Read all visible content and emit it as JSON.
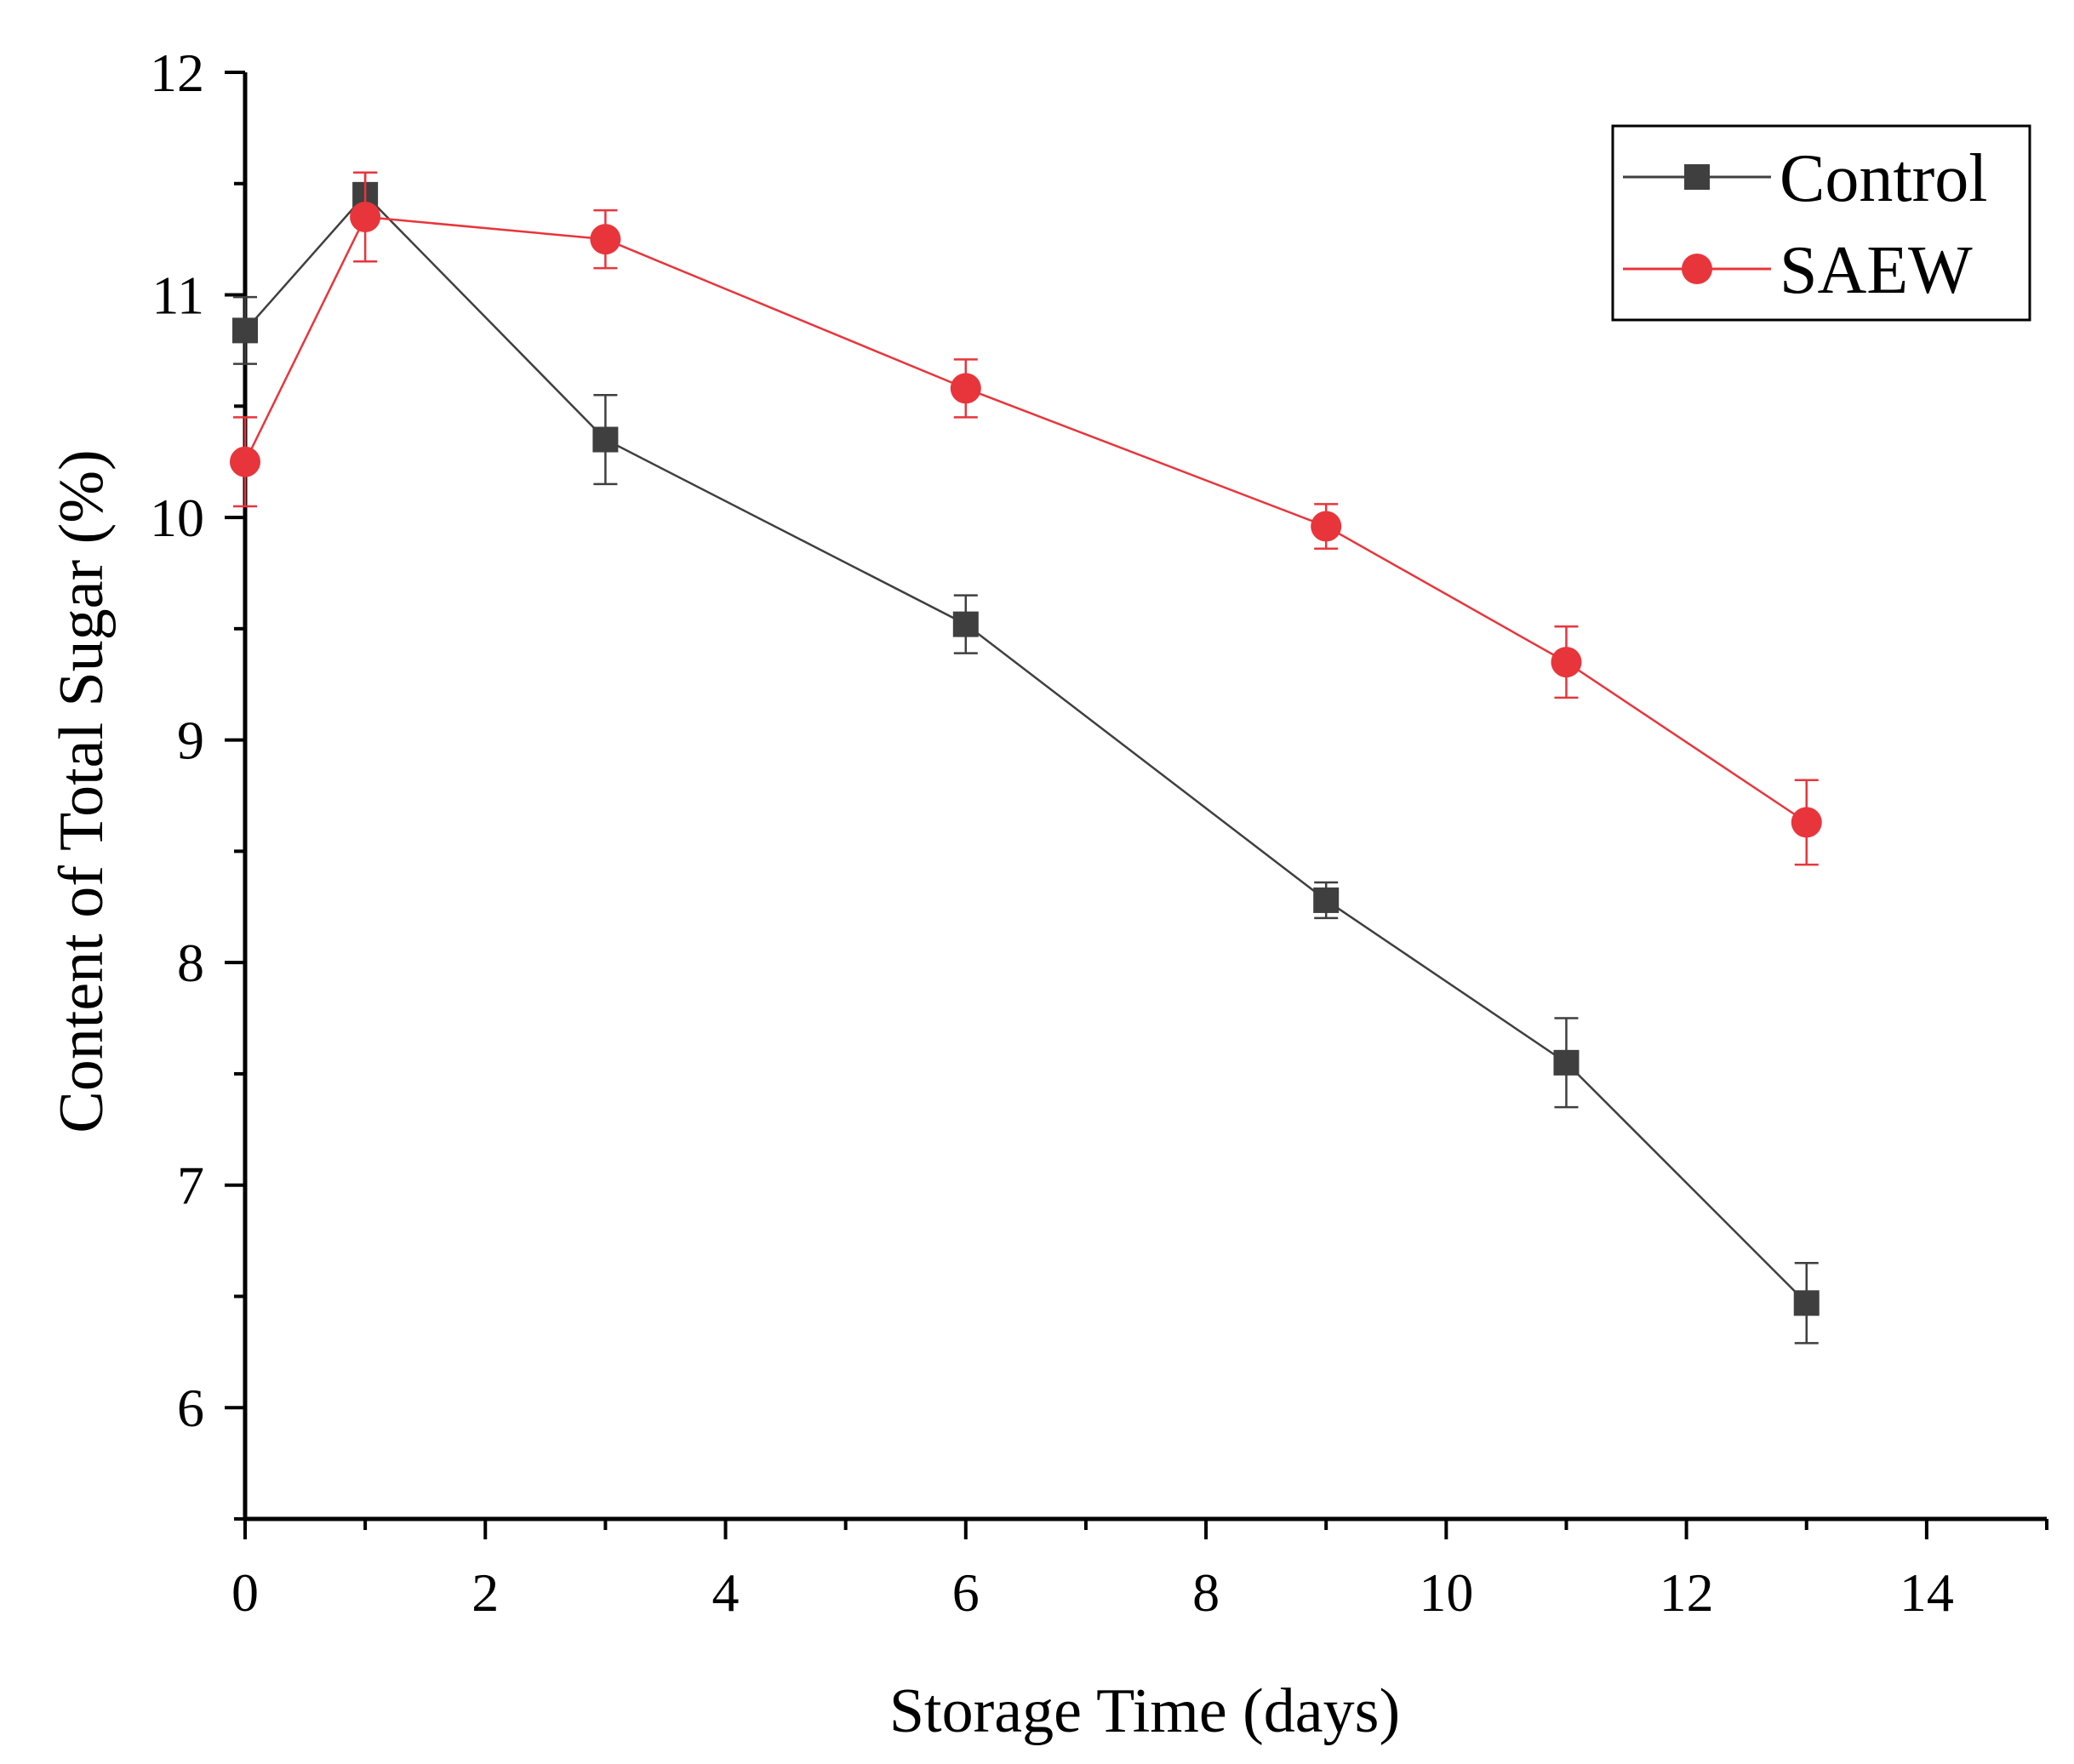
{
  "chart_data": {
    "type": "line",
    "title": "",
    "xlabel": "Storage Time (days)",
    "ylabel": "Content of Total Sugar (%)",
    "xlim": [
      0,
      15
    ],
    "ylim": [
      5.5,
      12
    ],
    "x_ticks": [
      0,
      2,
      4,
      6,
      8,
      10,
      12,
      14
    ],
    "y_ticks": [
      6,
      7,
      8,
      9,
      10,
      11,
      12
    ],
    "grid": false,
    "legend_position": "top-right",
    "series": [
      {
        "name": "Control",
        "color": "#3f3f3f",
        "marker": "square",
        "x": [
          0,
          1,
          3,
          6,
          9,
          11,
          13
        ],
        "y": [
          10.84,
          11.45,
          10.35,
          9.52,
          8.28,
          7.55,
          6.47
        ],
        "error": [
          0.15,
          0.1,
          0.2,
          0.13,
          0.08,
          0.2,
          0.18
        ]
      },
      {
        "name": "SAEW",
        "color": "#e8353b",
        "marker": "circle",
        "x": [
          0,
          1,
          3,
          6,
          9,
          11,
          13
        ],
        "y": [
          10.25,
          11.35,
          11.25,
          10.58,
          9.96,
          9.35,
          8.63
        ],
        "error": [
          0.2,
          0.2,
          0.13,
          0.13,
          0.1,
          0.16,
          0.19
        ]
      }
    ]
  }
}
